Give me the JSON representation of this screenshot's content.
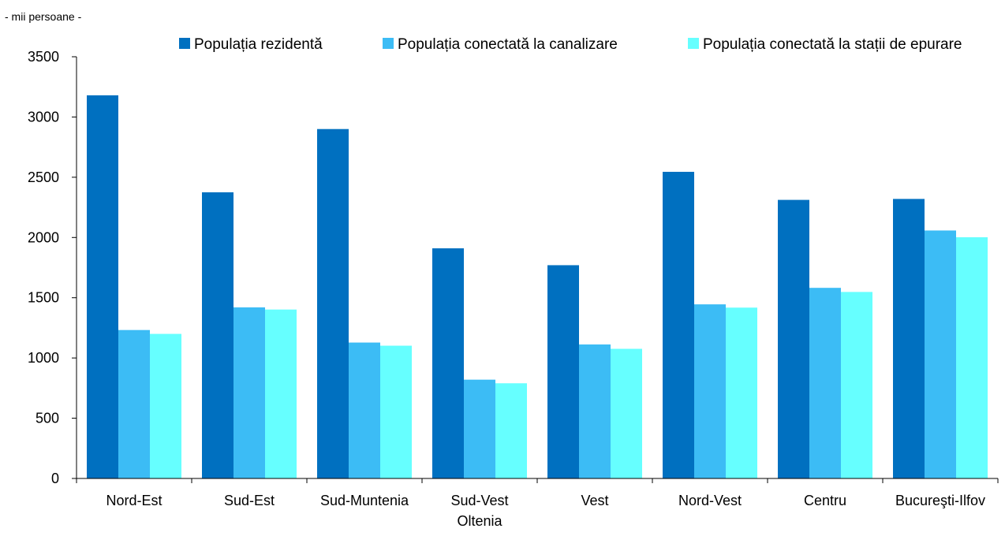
{
  "chart_data": {
    "type": "bar",
    "unit_label": "- mii persoane -",
    "categories": [
      [
        "Nord-Est"
      ],
      [
        "Sud-Est"
      ],
      [
        "Sud-Muntenia"
      ],
      [
        "Sud-Vest",
        "Oltenia"
      ],
      [
        "Vest"
      ],
      [
        "Nord-Vest"
      ],
      [
        "Centru"
      ],
      [
        "Bucureşti-Ilfov"
      ]
    ],
    "series": [
      {
        "name": "Populația rezidentă",
        "color": "#0070c0",
        "values": [
          3180,
          2375,
          2900,
          1910,
          1770,
          2545,
          2312,
          2320
        ]
      },
      {
        "name": "Populația conectată la canalizare",
        "color": "#3cbcf5",
        "values": [
          1232,
          1420,
          1128,
          820,
          1112,
          1445,
          1582,
          2058
        ]
      },
      {
        "name": "Populația conectată la stații de epurare",
        "color": "#66ffff",
        "values": [
          1200,
          1402,
          1102,
          790,
          1076,
          1418,
          1548,
          2002
        ]
      }
    ],
    "ylim": [
      0,
      3500
    ],
    "yticks": [
      0,
      500,
      1000,
      1500,
      2000,
      2500,
      3000,
      3500
    ],
    "xlabel": "",
    "ylabel": "",
    "legend_position": "top",
    "grid": false
  }
}
